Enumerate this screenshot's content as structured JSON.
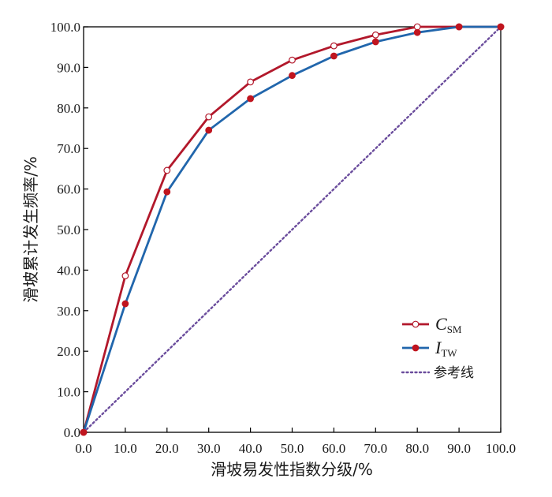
{
  "chart_data": {
    "type": "line",
    "title": "",
    "xlabel": "滑坡易发性指数分级/%",
    "ylabel": "滑坡累计发生频率/%",
    "xlim": [
      0,
      100
    ],
    "ylim": [
      0,
      100
    ],
    "x_ticks": [
      "0.0",
      "10.0",
      "20.0",
      "30.0",
      "40.0",
      "50.0",
      "60.0",
      "70.0",
      "80.0",
      "90.0",
      "100.0"
    ],
    "y_ticks": [
      "0.0",
      "10.0",
      "20.0",
      "30.0",
      "40.0",
      "50.0",
      "60.0",
      "70.0",
      "80.0",
      "90.0",
      "100.0"
    ],
    "grid": false,
    "legend_position": "bottom-right",
    "series": [
      {
        "name": "C",
        "subscript": "SM",
        "color": "#b2182b",
        "marker": "open-circle",
        "x": [
          0,
          10,
          20,
          30,
          40,
          50,
          60,
          70,
          80,
          90,
          100
        ],
        "y": [
          0,
          38.6,
          64.6,
          77.8,
          86.4,
          91.8,
          95.3,
          98.0,
          100,
          100,
          100
        ]
      },
      {
        "name": "I",
        "subscript": "TW",
        "color": "#2166ac",
        "marker": "filled-circle",
        "marker_color": "#c0151f",
        "x": [
          0,
          10,
          20,
          30,
          40,
          50,
          60,
          70,
          80,
          90,
          100
        ],
        "y": [
          0,
          31.7,
          59.3,
          74.5,
          82.3,
          88.0,
          92.8,
          96.3,
          98.6,
          100,
          100
        ]
      },
      {
        "name": "参考线",
        "color": "#6a4c9c",
        "style": "dotted",
        "x": [
          0,
          100
        ],
        "y": [
          0,
          100
        ]
      }
    ]
  }
}
